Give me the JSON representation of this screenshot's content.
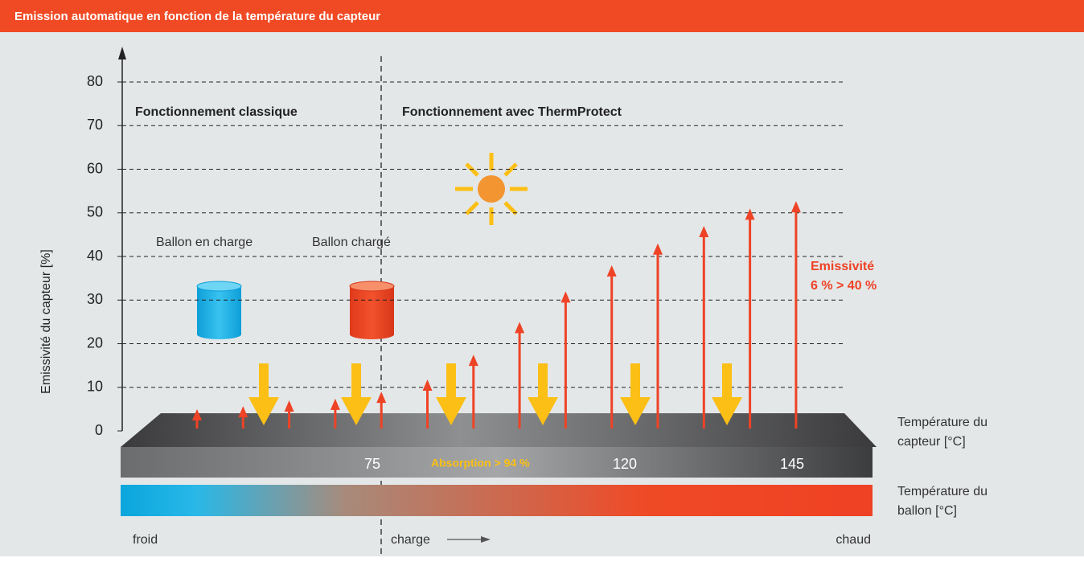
{
  "chart_data": {
    "type": "arrows",
    "title": "Emission automatique en fonction de la température du capteur",
    "ylabel": "Emissivité du capteur [%]",
    "ylim": [
      0,
      80
    ],
    "yticks": [
      0,
      10,
      20,
      30,
      40,
      50,
      60,
      70,
      80
    ],
    "grid": true,
    "values": [
      5,
      5.7,
      7,
      7.4,
      9,
      11.8,
      17.5,
      25,
      32,
      38,
      43,
      47,
      51,
      52.7
    ],
    "color": "#ee4326",
    "xticks": [
      75,
      120,
      145
    ],
    "xlabel": [
      "Température du",
      "capteur [°C]"
    ],
    "tank_label": [
      "Température du",
      "ballon [°C]"
    ],
    "section_left": "Fonctionnement classique",
    "section_right": "Fonctionnement avec ThermProtect",
    "tank_charging": "Ballon en charge",
    "tank_charged": "Ballon chargé",
    "emission_note": [
      "Emissivité",
      "6 % > 40 %"
    ],
    "absorption": "Absorption > 94 %",
    "scale_labels": [
      "froid",
      "charge",
      "chaud"
    ]
  }
}
